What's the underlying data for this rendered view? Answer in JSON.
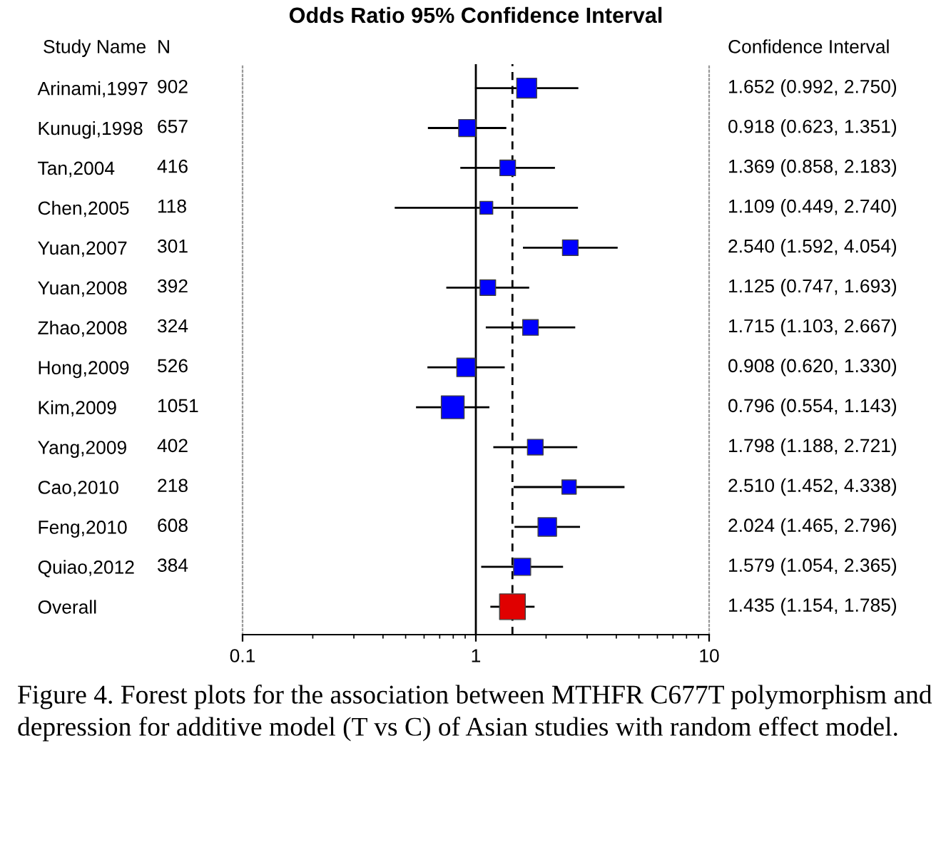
{
  "chart_data": {
    "type": "scatter",
    "orientation": "horizontal",
    "title": "Odds Ratio 95% Confidence Interval",
    "categories": [
      "Arinami,1997",
      "Kunugi,1998",
      "Tan,2004",
      "Chen,2005",
      "Yuan,2007",
      "Yuan,2008",
      "Zhao,2008",
      "Hong,2009",
      "Kim,2009",
      "Yang,2009",
      "Cao,2010",
      "Feng,2010",
      "Quiao,2012",
      "Overall"
    ],
    "values": [
      1.652,
      0.918,
      1.369,
      1.109,
      2.54,
      1.125,
      1.715,
      0.908,
      0.796,
      1.798,
      2.51,
      2.024,
      1.579,
      1.435
    ],
    "errors": [
      [
        0.992,
        2.75
      ],
      [
        0.623,
        1.351
      ],
      [
        0.858,
        2.183
      ],
      [
        0.449,
        2.74
      ],
      [
        1.592,
        4.054
      ],
      [
        0.747,
        1.693
      ],
      [
        1.103,
        2.667
      ],
      [
        0.62,
        1.33
      ],
      [
        0.554,
        1.143
      ],
      [
        1.188,
        2.721
      ],
      [
        1.452,
        4.338
      ],
      [
        1.465,
        2.796
      ],
      [
        1.054,
        2.365
      ],
      [
        1.154,
        1.785
      ]
    ],
    "colors": [
      "#0000ff",
      "#0000ff",
      "#0000ff",
      "#0000ff",
      "#0000ff",
      "#0000ff",
      "#0000ff",
      "#0000ff",
      "#0000ff",
      "#0000ff",
      "#0000ff",
      "#0000ff",
      "#0000ff",
      "#e00000"
    ],
    "value_labels": [
      "1.652 (0.992, 2.750)",
      "0.918 (0.623, 1.351)",
      "1.369 (0.858, 2.183)",
      "1.109 (0.449, 2.740)",
      "2.540 (1.592, 4.054)",
      "1.125 (0.747, 1.693)",
      "1.715 (1.103, 2.667)",
      "0.908 (0.620, 1.330)",
      "0.796 (0.554, 1.143)",
      "1.798 (1.188, 2.721)",
      "2.510 (1.452, 4.338)",
      "2.024 (1.465, 2.796)",
      "1.579 (1.054, 2.365)",
      "1.435 (1.154, 1.785)"
    ],
    "sizes": [
      0.6,
      0.44,
      0.37,
      0.25,
      0.37,
      0.37,
      0.37,
      0.52,
      0.79,
      0.37,
      0.31,
      0.52,
      0.44,
      1
    ],
    "marker": "square",
    "log": "x",
    "xlim": [
      0.1,
      10
    ],
    "xticks": [
      0.1,
      1,
      10
    ],
    "grid": false,
    "legend": false,
    "ref_lines": [
      {
        "axis": "x",
        "value": 1,
        "color": "#000000",
        "line_style": "solid"
      },
      {
        "axis": "x",
        "value": 1.435,
        "color": "#000000",
        "line_style": "dashed"
      }
    ],
    "annotations": [
      "Study Name",
      "N",
      "Confidence Interval",
      "Figure 4. Forest plots for the association between MTHFR C677T polymorphism and depression for additive model (T vs C) of Asian studies with random effect model.",
      "902",
      "657",
      "416",
      "118",
      "301",
      "392",
      "324",
      "526",
      "1051",
      "402",
      "218",
      "608",
      "384"
    ]
  }
}
